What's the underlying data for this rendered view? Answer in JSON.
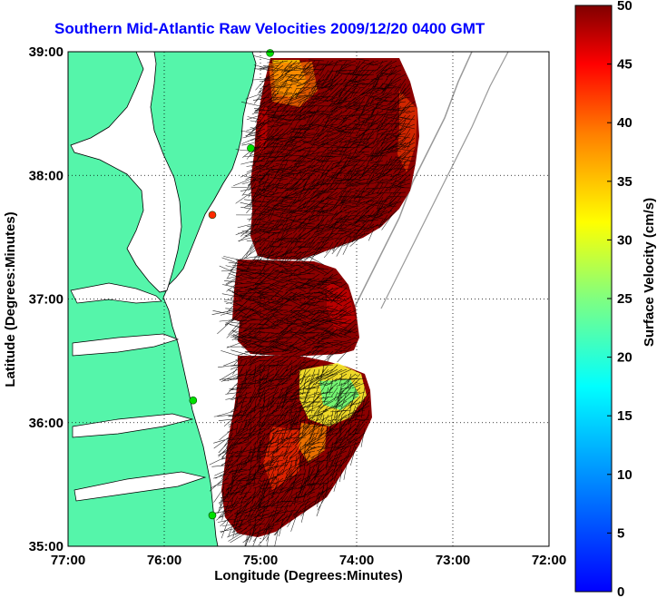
{
  "title": "Southern Mid-Atlantic Raw Velocities 2009/12/20 0400 GMT",
  "map": {
    "xlabel": "Longitude (Degrees:Minutes)",
    "ylabel": "Latitude (Degrees:Minutes)",
    "lon_ticks": [
      "77:00",
      "76:00",
      "75:00",
      "74:00",
      "73:00",
      "72:00"
    ],
    "lat_ticks": [
      "39:00",
      "38:00",
      "37:00",
      "36:00",
      "35:00"
    ],
    "lon_range": [
      -77,
      -72
    ],
    "lat_range": [
      35,
      39
    ],
    "land_color": "#55f5aa",
    "grid": true,
    "station_markers": [
      {
        "lon": -74.9,
        "lat": 38.99,
        "color": "#00e000"
      },
      {
        "lon": -75.1,
        "lat": 38.22,
        "color": "#00e000"
      },
      {
        "lon": -75.5,
        "lat": 37.68,
        "color": "#ff2a00"
      },
      {
        "lon": -75.7,
        "lat": 36.18,
        "color": "#00e000"
      },
      {
        "lon": -75.5,
        "lat": 35.25,
        "color": "#00e000"
      }
    ]
  },
  "colorbar": {
    "label": "Surface Velocity (cm/s)",
    "ticks": [
      "0",
      "5",
      "10",
      "15",
      "20",
      "25",
      "30",
      "35",
      "40",
      "45",
      "50"
    ],
    "range": [
      0,
      50
    ],
    "colormap": "jet"
  }
}
